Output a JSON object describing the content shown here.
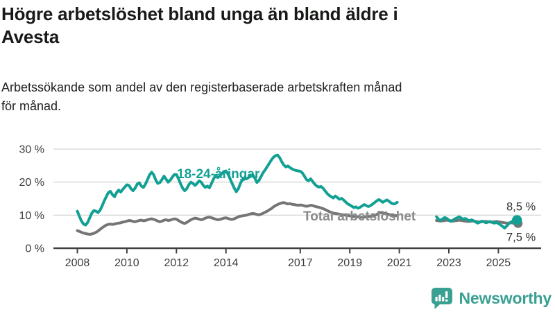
{
  "header": {
    "title_lines": [
      "Högre arbetslöshet bland unga än bland äldre i",
      "Avesta"
    ],
    "subtitle_lines": [
      "Arbetssökande som andel av den registerbaserade arbetskraften månad",
      "för månad."
    ]
  },
  "footer": {
    "brand": "Newsworthy"
  },
  "colors": {
    "youth_line": "#13A094",
    "total_line": "#757575",
    "total_label": "#8A8A8A",
    "grid": "#DADADA",
    "axis": "#404040",
    "tick_text": "#3C3C3C",
    "end_label_text": "#333333",
    "brand_teal": "#3AA092"
  },
  "chart_data": {
    "type": "line",
    "title": "Högre arbetslöshet bland unga än bland äldre i Avesta",
    "subtitle": "Arbetssökande som andel av den registerbaserade arbetskraften månad för månad.",
    "unit": "%",
    "x_start_year": 2008,
    "x_step": "1 month",
    "x_end": "2025-10",
    "x_tick_years": [
      2008,
      2010,
      2012,
      2014,
      2017,
      2019,
      2021,
      2023,
      2025
    ],
    "y_ticks": [
      {
        "value": 0,
        "label": "0 %"
      },
      {
        "value": 10,
        "label": "10 %"
      },
      {
        "value": 20,
        "label": "20 %"
      },
      {
        "value": 30,
        "label": "30 %"
      }
    ],
    "ylim": [
      0,
      30
    ],
    "grid": true,
    "legend_position": "inline-labels",
    "note": "null values = visible data gap between 2021 and mid-2022",
    "series": [
      {
        "name": "18-24-åringar",
        "color": "#13A094",
        "end_label": "8,5 %",
        "end_value": 8.5,
        "values": [
          11.2,
          9.6,
          8.2,
          7.3,
          7.0,
          7.8,
          9.2,
          10.6,
          11.4,
          11.2,
          10.8,
          11.5,
          12.8,
          14.3,
          15.6,
          16.8,
          17.2,
          16.2,
          15.6,
          16.8,
          17.6,
          17.0,
          17.8,
          18.5,
          19.2,
          19.0,
          18.0,
          17.4,
          18.2,
          19.4,
          19.8,
          18.8,
          18.4,
          19.4,
          20.8,
          22.2,
          23.0,
          22.2,
          20.6,
          19.6,
          19.9,
          20.8,
          21.8,
          20.9,
          20.0,
          20.6,
          21.5,
          22.3,
          22.3,
          21.0,
          19.5,
          18.2,
          17.4,
          18.0,
          19.2,
          20.0,
          19.6,
          19.0,
          19.6,
          20.4,
          20.0,
          19.0,
          18.4,
          18.8,
          18.3,
          19.6,
          21.0,
          22.0,
          21.4,
          21.8,
          22.6,
          23.2,
          23.4,
          22.4,
          21.0,
          19.6,
          18.2,
          17.1,
          18.0,
          19.6,
          20.8,
          21.2,
          21.0,
          21.4,
          21.8,
          22.2,
          21.2,
          19.9,
          20.5,
          21.7,
          22.9,
          23.7,
          24.7,
          25.7,
          26.7,
          27.5,
          28.0,
          28.2,
          27.4,
          26.2,
          25.2,
          24.6,
          24.9,
          24.4,
          24.0,
          23.7,
          23.5,
          23.4,
          23.3,
          22.8,
          21.8,
          20.8,
          20.4,
          21.0,
          20.2,
          19.4,
          18.8,
          18.5,
          18.7,
          18.2,
          17.4,
          16.6,
          16.0,
          15.6,
          15.2,
          15.8,
          15.3,
          14.8,
          15.1,
          14.6,
          14.0,
          13.4,
          13.1,
          12.7,
          12.3,
          12.5,
          12.1,
          12.4,
          12.8,
          13.2,
          12.9,
          12.6,
          12.9,
          13.3,
          13.8,
          14.3,
          14.7,
          14.4,
          13.9,
          14.3,
          14.6,
          14.2,
          13.7,
          13.4,
          13.5,
          13.9,
          null,
          null,
          null,
          null,
          null,
          null,
          null,
          null,
          null,
          null,
          null,
          null,
          null,
          null,
          null,
          null,
          null,
          null,
          9.5,
          8.8,
          8.4,
          8.9,
          9.3,
          9.0,
          8.5,
          8.1,
          8.5,
          8.9,
          9.2,
          9.5,
          9.1,
          8.8,
          9.0,
          8.6,
          8.3,
          8.6,
          8.3,
          7.9,
          7.6,
          7.9,
          8.2,
          8.0,
          7.7,
          7.9,
          8.1,
          7.8,
          7.6,
          7.8,
          7.5,
          7.1,
          6.6,
          6.1,
          6.7,
          7.4,
          7.9,
          8.2,
          8.4,
          8.5
        ]
      },
      {
        "name": "Total arbetslöshet",
        "color": "#757575",
        "end_label": "7,5 %",
        "end_value": 7.5,
        "values": [
          5.3,
          5.1,
          4.8,
          4.6,
          4.4,
          4.3,
          4.2,
          4.3,
          4.5,
          4.8,
          5.2,
          5.7,
          6.2,
          6.6,
          7.0,
          7.2,
          7.3,
          7.2,
          7.3,
          7.5,
          7.6,
          7.7,
          7.9,
          8.0,
          8.2,
          8.4,
          8.3,
          8.1,
          8.0,
          8.2,
          8.4,
          8.5,
          8.3,
          8.4,
          8.6,
          8.8,
          8.9,
          8.7,
          8.5,
          8.2,
          8.0,
          8.2,
          8.5,
          8.6,
          8.4,
          8.5,
          8.7,
          8.9,
          8.8,
          8.4,
          8.0,
          7.7,
          7.5,
          7.8,
          8.2,
          8.6,
          8.9,
          9.1,
          9.0,
          8.8,
          8.6,
          8.8,
          9.1,
          9.3,
          9.4,
          9.2,
          9.0,
          8.8,
          8.6,
          8.7,
          8.9,
          9.1,
          9.2,
          9.0,
          8.8,
          8.7,
          8.9,
          9.2,
          9.5,
          9.7,
          9.8,
          9.9,
          10.0,
          10.2,
          10.4,
          10.5,
          10.4,
          10.2,
          10.1,
          10.3,
          10.6,
          10.9,
          11.2,
          11.6,
          12.0,
          12.5,
          12.9,
          13.2,
          13.5,
          13.7,
          13.8,
          13.6,
          13.4,
          13.5,
          13.3,
          13.2,
          13.1,
          13.0,
          13.1,
          13.0,
          12.8,
          12.7,
          12.8,
          13.0,
          12.9,
          12.7,
          12.5,
          12.4,
          12.2,
          12.0,
          11.7,
          11.4,
          11.1,
          10.8,
          10.6,
          10.5,
          10.4,
          10.3,
          10.2,
          10.1,
          10.0,
          9.9,
          9.8,
          9.7,
          9.6,
          9.5,
          9.5,
          9.4,
          9.4,
          9.5,
          9.5,
          9.6,
          9.6,
          9.7,
          9.9,
          10.2,
          10.6,
          10.8,
          10.7,
          10.5,
          10.4,
          10.2,
          10.1,
          10.0,
          9.9,
          9.8,
          null,
          null,
          null,
          null,
          null,
          null,
          null,
          null,
          null,
          null,
          null,
          null,
          null,
          null,
          null,
          null,
          null,
          null,
          8.4,
          8.3,
          8.2,
          8.3,
          8.4,
          8.5,
          8.4,
          8.3,
          8.2,
          8.3,
          8.4,
          8.5,
          8.4,
          8.3,
          8.2,
          8.1,
          8.1,
          8.2,
          8.2,
          8.1,
          8.0,
          7.9,
          8.0,
          8.1,
          8.1,
          8.0,
          7.9,
          7.9,
          8.0,
          8.1,
          8.0,
          7.9,
          7.8,
          7.7,
          7.6,
          7.6,
          7.7,
          7.6,
          7.5,
          7.5
        ]
      }
    ]
  }
}
